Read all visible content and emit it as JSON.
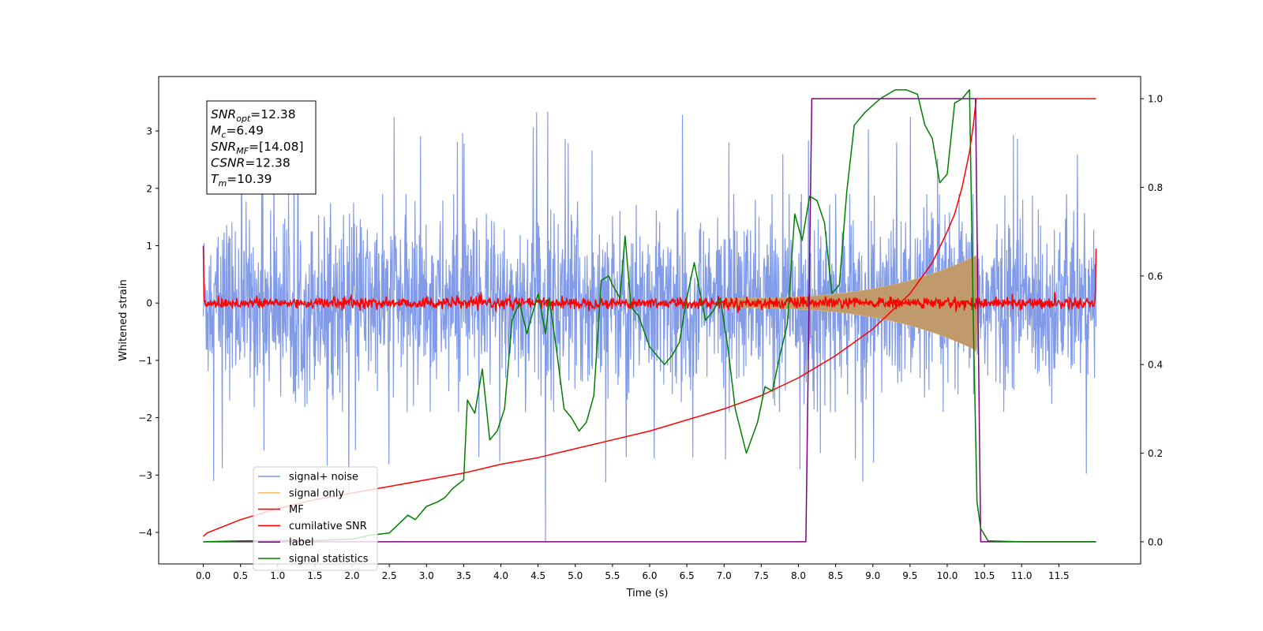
{
  "chart_data": {
    "type": "line",
    "xlabel": "Time (s)",
    "ylabel": "Whitened strain",
    "xlim": [
      -0.6,
      12.6
    ],
    "ylim": [
      -4.55,
      3.95
    ],
    "ylim_right": [
      -0.05,
      1.05
    ],
    "xticks": [
      "0.0",
      "0.5",
      "1.0",
      "1.5",
      "2.0",
      "2.5",
      "3.0",
      "3.5",
      "4.0",
      "4.5",
      "5.0",
      "5.5",
      "6.0",
      "6.5",
      "7.0",
      "7.5",
      "8.0",
      "8.5",
      "9.0",
      "9.5",
      "10.0",
      "10.5",
      "11.0",
      "11.5"
    ],
    "yticks_left": [
      "3",
      "2",
      "1",
      "0",
      "−1",
      "−2",
      "−3",
      "−4"
    ],
    "yticks_right": [
      "1.0",
      "0.8",
      "0.6",
      "0.4",
      "0.2",
      "0.0"
    ],
    "grid": false,
    "legend_position": "lower-left",
    "annotation": {
      "lines": [
        {
          "sym": "SNR",
          "sub": "opt",
          "val": "=12.38"
        },
        {
          "sym": "M",
          "sub": "c",
          "val": "=6.49"
        },
        {
          "sym": "SNR",
          "sub": "MF",
          "val": "=[14.08]"
        },
        {
          "sym": "CSNR",
          "sub": "",
          "val": "=12.38"
        },
        {
          "sym": "T",
          "sub": "m",
          "val": "=10.39"
        }
      ]
    },
    "series": [
      {
        "name": "signal+ noise",
        "color": "#7a96e8",
        "axis": "left",
        "description": "noise band",
        "envelope": {
          "x": [
            0,
            12
          ],
          "low": -1.9,
          "high": 1.9,
          "spike_high": 3.35,
          "spike_low": -3.4,
          "min_at": [
            4.6,
            -4.15
          ]
        }
      },
      {
        "name": "signal only",
        "color": "#f5c06a",
        "axis": "left",
        "chirp": {
          "t_start": 7.0,
          "t_merge": 10.39,
          "max_amp": 0.75
        }
      },
      {
        "name": "MF",
        "color": "#ff0000",
        "axis": "left",
        "noise_amp": 0.1,
        "edge": [
          1.0,
          0.95
        ]
      },
      {
        "name": "cumilative SNR",
        "color": "#ff0000",
        "axis": "right",
        "x": [
          0,
          0.05,
          0.5,
          1,
          1.5,
          2,
          2.5,
          3,
          3.5,
          4,
          4.5,
          5,
          5.5,
          6,
          6.5,
          7,
          7.5,
          8,
          8.5,
          9,
          9.5,
          9.8,
          10,
          10.1,
          10.2,
          10.3,
          10.35,
          10.39,
          12
        ],
        "y": [
          0.012,
          0.02,
          0.05,
          0.075,
          0.095,
          0.11,
          0.125,
          0.14,
          0.155,
          0.175,
          0.19,
          0.21,
          0.23,
          0.25,
          0.275,
          0.3,
          0.33,
          0.37,
          0.42,
          0.48,
          0.56,
          0.63,
          0.7,
          0.74,
          0.8,
          0.88,
          0.94,
          1.0,
          1.0
        ]
      },
      {
        "name": "label",
        "color": "#800080",
        "axis": "right",
        "x": [
          0,
          8.1,
          8.18,
          10.38,
          10.45,
          12
        ],
        "y": [
          0,
          0,
          1,
          1,
          0,
          0
        ]
      },
      {
        "name": "signal statistics",
        "color": "#007f00",
        "axis": "right",
        "x": [
          0,
          0.5,
          1,
          1.5,
          2,
          2.25,
          2.5,
          2.75,
          2.85,
          3.0,
          3.15,
          3.25,
          3.35,
          3.5,
          3.55,
          3.65,
          3.75,
          3.85,
          3.95,
          4.05,
          4.15,
          4.25,
          4.35,
          4.5,
          4.6,
          4.65,
          4.75,
          4.85,
          4.95,
          5.05,
          5.15,
          5.25,
          5.35,
          5.45,
          5.5,
          5.6,
          5.67,
          5.75,
          5.85,
          6.0,
          6.1,
          6.2,
          6.3,
          6.4,
          6.5,
          6.6,
          6.75,
          6.85,
          6.95,
          7.05,
          7.15,
          7.3,
          7.45,
          7.55,
          7.65,
          7.75,
          7.85,
          7.95,
          8.05,
          8.15,
          8.25,
          8.35,
          8.45,
          8.55,
          8.65,
          8.75,
          8.9,
          9.1,
          9.3,
          9.45,
          9.6,
          9.7,
          9.8,
          9.9,
          10.0,
          10.1,
          10.2,
          10.3,
          10.35,
          10.4,
          10.45,
          10.55,
          11.0,
          11.5,
          12.0
        ],
        "y": [
          0.0,
          0.002,
          0.003,
          0.003,
          0.006,
          0.015,
          0.02,
          0.06,
          0.05,
          0.08,
          0.09,
          0.1,
          0.12,
          0.14,
          0.32,
          0.29,
          0.39,
          0.23,
          0.25,
          0.3,
          0.5,
          0.54,
          0.47,
          0.56,
          0.47,
          0.55,
          0.43,
          0.3,
          0.28,
          0.25,
          0.27,
          0.33,
          0.59,
          0.6,
          0.58,
          0.55,
          0.69,
          0.53,
          0.51,
          0.44,
          0.42,
          0.4,
          0.42,
          0.45,
          0.55,
          0.63,
          0.5,
          0.52,
          0.55,
          0.44,
          0.3,
          0.2,
          0.27,
          0.35,
          0.34,
          0.42,
          0.49,
          0.74,
          0.68,
          0.78,
          0.77,
          0.72,
          0.56,
          0.58,
          0.79,
          0.94,
          0.97,
          1.0,
          1.02,
          1.02,
          1.01,
          0.94,
          0.91,
          0.81,
          0.83,
          0.99,
          1.0,
          1.02,
          0.5,
          0.09,
          0.03,
          0.002,
          0.0,
          0.0,
          0.0
        ]
      }
    ]
  }
}
